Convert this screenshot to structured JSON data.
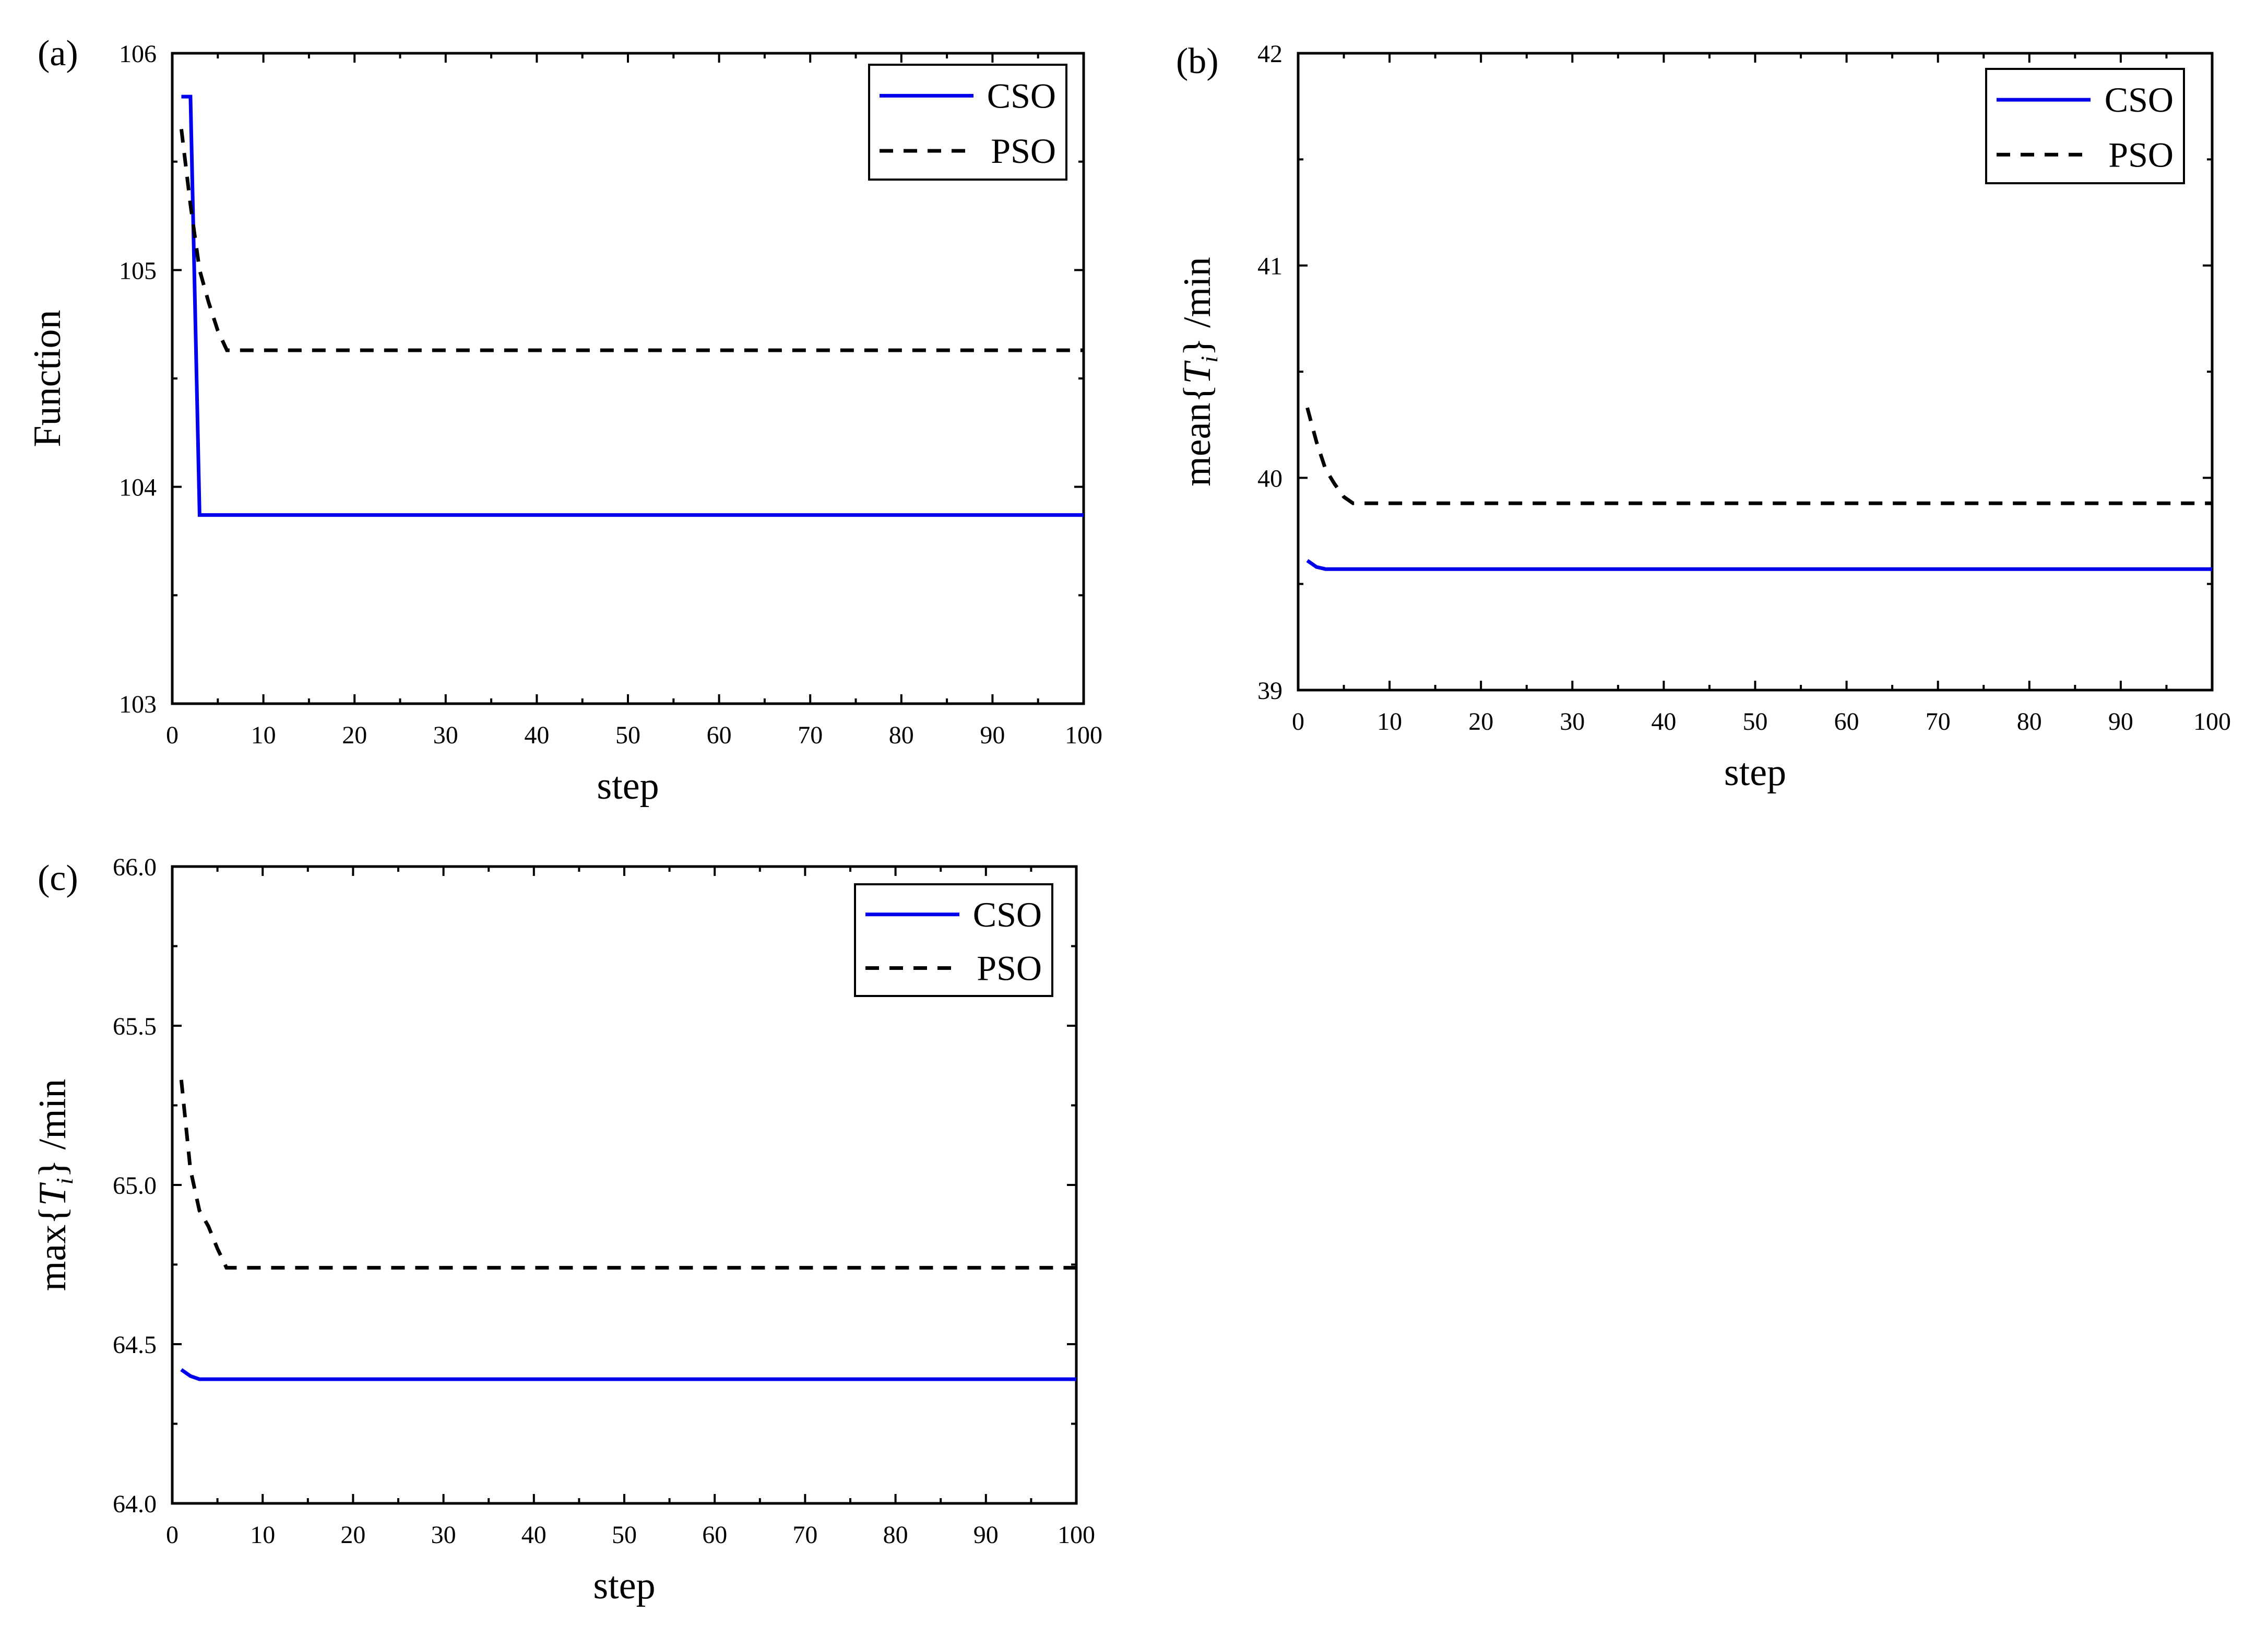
{
  "colors": {
    "cso": "#0000ee",
    "pso": "#000000",
    "axis": "#000000",
    "background": "#ffffff"
  },
  "chart_data": [
    {
      "panel": "(a)",
      "type": "line",
      "xlabel": "step",
      "ylabel": {
        "prefix": "Function",
        "var": "",
        "sub": "",
        "suffix": ""
      },
      "xlim": [
        0,
        100
      ],
      "ylim": [
        103,
        106
      ],
      "xticks": [
        "0",
        "10",
        "20",
        "30",
        "40",
        "50",
        "60",
        "70",
        "80",
        "90",
        "100"
      ],
      "yticks": [
        "103",
        "104",
        "105",
        "106"
      ],
      "legend": {
        "position": "top-right",
        "entries": [
          "CSO",
          "PSO"
        ]
      },
      "series": [
        {
          "name": "CSO",
          "style": "solid",
          "x": [
            1,
            2,
            3,
            100
          ],
          "y": [
            105.8,
            105.8,
            103.87,
            103.87
          ]
        },
        {
          "name": "PSO",
          "style": "dashed",
          "x": [
            1,
            2,
            3,
            4,
            5,
            6,
            100
          ],
          "y": [
            105.65,
            105.3,
            105.0,
            104.85,
            104.72,
            104.63,
            104.63
          ]
        }
      ]
    },
    {
      "panel": "(b)",
      "type": "line",
      "xlabel": "step",
      "ylabel": {
        "prefix": "mean{",
        "var": "T",
        "sub": "i",
        "suffix": "} /min"
      },
      "xlim": [
        0,
        100
      ],
      "ylim": [
        39,
        42
      ],
      "xticks": [
        "0",
        "10",
        "20",
        "30",
        "40",
        "50",
        "60",
        "70",
        "80",
        "90",
        "100"
      ],
      "yticks": [
        "39",
        "40",
        "41",
        "42"
      ],
      "legend": {
        "position": "top-right",
        "entries": [
          "CSO",
          "PSO"
        ]
      },
      "series": [
        {
          "name": "CSO",
          "style": "solid",
          "x": [
            1,
            2,
            3,
            100
          ],
          "y": [
            39.61,
            39.58,
            39.57,
            39.57
          ]
        },
        {
          "name": "PSO",
          "style": "dashed",
          "x": [
            1,
            2,
            3,
            4,
            5,
            6,
            100
          ],
          "y": [
            40.33,
            40.17,
            40.04,
            39.97,
            39.91,
            39.88,
            39.88
          ]
        }
      ]
    },
    {
      "panel": "(c)",
      "type": "line",
      "xlabel": "step",
      "ylabel": {
        "prefix": "max{",
        "var": "T",
        "sub": "i",
        "suffix": "}  /min"
      },
      "xlim": [
        0,
        100
      ],
      "ylim": [
        64.0,
        66.0
      ],
      "xticks": [
        "0",
        "10",
        "20",
        "30",
        "40",
        "50",
        "60",
        "70",
        "80",
        "90",
        "100"
      ],
      "yticks": [
        "64.0",
        "64.5",
        "65.0",
        "65.5",
        "66.0"
      ],
      "legend": {
        "position": "top-right",
        "entries": [
          "CSO",
          "PSO"
        ]
      },
      "series": [
        {
          "name": "CSO",
          "style": "solid",
          "x": [
            1,
            2,
            3,
            100
          ],
          "y": [
            64.42,
            64.4,
            64.39,
            64.39
          ]
        },
        {
          "name": "PSO",
          "style": "dashed",
          "x": [
            1,
            2,
            3,
            4,
            5,
            6,
            100
          ],
          "y": [
            65.33,
            65.05,
            64.92,
            64.87,
            64.8,
            64.74,
            64.74
          ]
        }
      ]
    }
  ]
}
